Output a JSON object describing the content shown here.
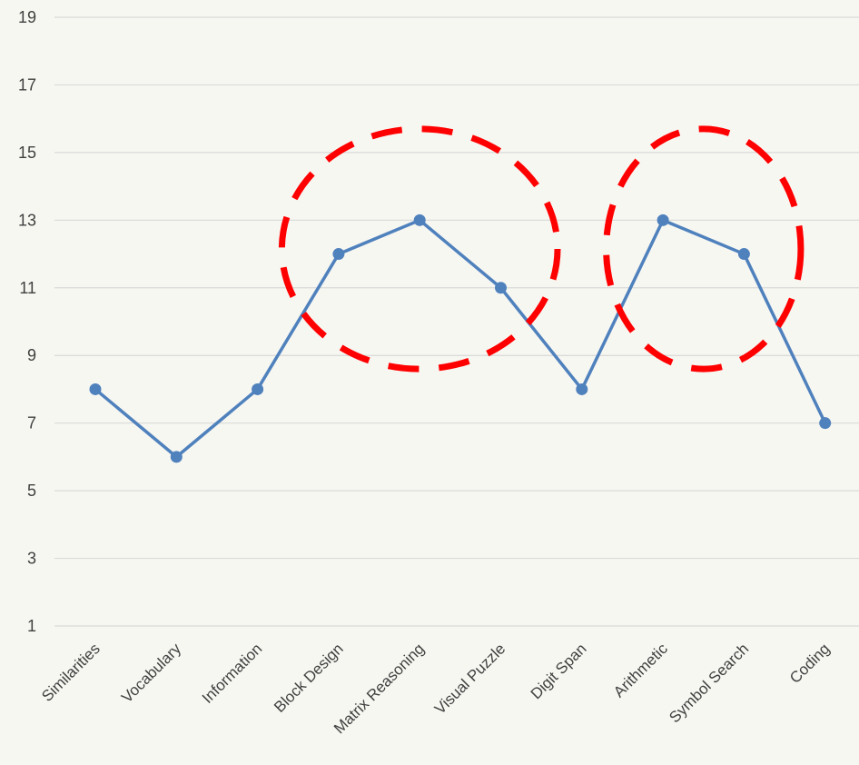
{
  "chart_data": {
    "type": "line",
    "title": "",
    "xlabel": "",
    "ylabel": "",
    "categories": [
      "Similarities",
      "Vocabulary",
      "Information",
      "Block Design",
      "Matrix Reasoning",
      "Visual Puzzle",
      "Digit Span",
      "Arithmetic",
      "Symbol Search",
      "Coding"
    ],
    "series": [
      {
        "values": [
          8,
          6,
          8,
          12,
          13,
          11,
          8,
          13,
          12,
          7
        ],
        "color": "#4f81bd"
      }
    ],
    "ylim": [
      1,
      19
    ],
    "yticks": [
      1,
      3,
      5,
      7,
      9,
      11,
      13,
      15,
      17,
      19
    ],
    "grid": true,
    "legend": "none",
    "annotations": [
      {
        "type": "dashed-ellipse",
        "color": "#ff0000",
        "category_span": [
          "Block Design",
          "Visual Puzzle"
        ],
        "y_span": [
          8.6,
          15.7
        ]
      },
      {
        "type": "dashed-ellipse",
        "color": "#ff0000",
        "category_span": [
          "Arithmetic",
          "Symbol Search"
        ],
        "y_span": [
          8.6,
          15.7
        ]
      }
    ]
  }
}
